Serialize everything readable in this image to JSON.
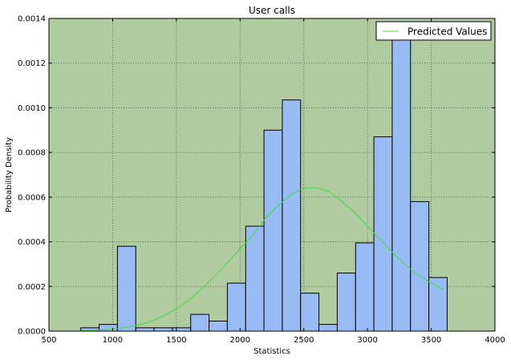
{
  "chart_data": {
    "type": "bar",
    "title": "User calls",
    "xlabel": "Statistics",
    "ylabel": "Probability Density",
    "xlim": [
      500,
      4000
    ],
    "ylim": [
      0,
      0.0014
    ],
    "xticks": [
      500,
      1000,
      1500,
      2000,
      2500,
      3000,
      3500,
      4000
    ],
    "yticks": [
      "0.0000",
      "0.0002",
      "0.0004",
      "0.0006",
      "0.0008",
      "0.0010",
      "0.0012",
      "0.0014"
    ],
    "grid": true,
    "legend_position": "top-right",
    "background_color": "#afcb9f",
    "bar_color": "#99bbf3",
    "line_color": "#44dd44",
    "histogram": {
      "bin_edges": [
        750,
        893.75,
        1037.5,
        1181.25,
        1325,
        1468.75,
        1612.5,
        1756.25,
        1900,
        2043.75,
        2187.5,
        2331.25,
        2475,
        2618.75,
        2762.5,
        2906.25,
        3050,
        3193.75,
        3337.5,
        3481.25,
        3625
      ],
      "values": [
        1.5e-05,
        3e-05,
        0.00038,
        1.5e-05,
        1.5e-05,
        1.5e-05,
        7.5e-05,
        4.5e-05,
        0.000215,
        0.00047,
        0.0009,
        0.001035,
        0.00017,
        3e-05,
        0.00026,
        0.000395,
        0.00087,
        0.00134,
        0.00058,
        0.00024
      ]
    },
    "series": [
      {
        "name": "Predicted Values",
        "type": "line",
        "x": [
          750,
          900,
          1000,
          1100,
          1200,
          1300,
          1400,
          1500,
          1600,
          1700,
          1800,
          1900,
          2000,
          2100,
          2200,
          2300,
          2400,
          2500,
          2600,
          2700,
          2800,
          2900,
          3000,
          3100,
          3200,
          3300,
          3400,
          3500,
          3600
        ],
        "y": [
          1e-06,
          5e-06,
          9e-06,
          1.6e-05,
          2.7e-05,
          4.4e-05,
          6.8e-05,
          0.0001,
          0.00014,
          0.00019,
          0.000245,
          0.000305,
          0.000369,
          0.00043,
          0.000506,
          0.000562,
          0.000612,
          0.000642,
          0.000642,
          0.000625,
          0.00058,
          0.00053,
          0.00047,
          0.00041,
          0.00035,
          0.000295,
          0.00025,
          0.000215,
          0.000185
        ]
      }
    ]
  }
}
